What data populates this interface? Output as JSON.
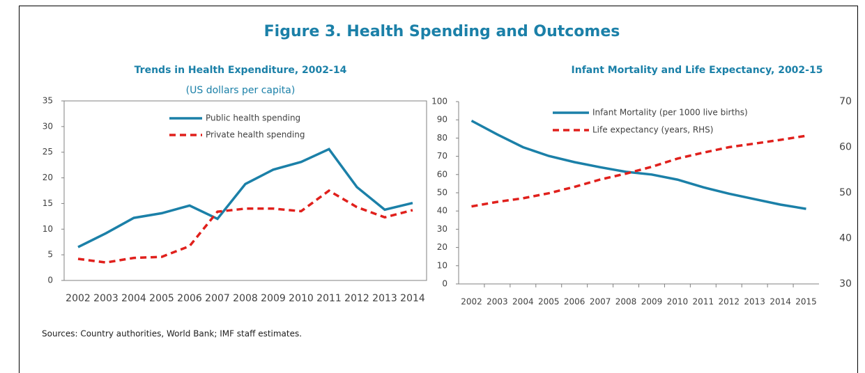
{
  "title": "Figure 3. Health Spending and Outcomes",
  "source": "Sources: Country authorities, World Bank; IMF staff estimates.",
  "chart_data": [
    {
      "type": "line",
      "title": "Trends in Health Expenditure, 2002-14",
      "subtitle": "(US dollars per capita)",
      "categories": [
        "2002",
        "2003",
        "2004",
        "2005",
        "2006",
        "2007",
        "2008",
        "2009",
        "2010",
        "2011",
        "2012",
        "2013",
        "2014"
      ],
      "series": [
        {
          "name": "Public health spending",
          "color": "#1b80a8",
          "dashed": false,
          "values": [
            6.5,
            9.2,
            12.2,
            13.1,
            14.6,
            12.0,
            18.8,
            21.6,
            23.1,
            25.6,
            18.2,
            13.8,
            15.1
          ]
        },
        {
          "name": "Private health spending",
          "color": "#e0201c",
          "dashed": true,
          "values": [
            4.2,
            3.5,
            4.4,
            4.6,
            6.7,
            13.4,
            14.0,
            14.0,
            13.5,
            17.5,
            14.3,
            12.3,
            13.7
          ]
        }
      ],
      "ylim": [
        0,
        35
      ],
      "yticks": [
        0,
        5,
        10,
        15,
        20,
        25,
        30,
        35
      ]
    },
    {
      "type": "line",
      "title": "Infant Mortality and Life Expectancy, 2002-15",
      "categories": [
        "2002",
        "2003",
        "2004",
        "2005",
        "2006",
        "2007",
        "2008",
        "2009",
        "2010",
        "2011",
        "2012",
        "2013",
        "2014",
        "2015"
      ],
      "series": [
        {
          "name": "Infant Mortality (per 1000 live births)",
          "color": "#1b80a8",
          "dashed": false,
          "values": [
            89.5,
            82,
            75,
            70.2,
            66.8,
            64,
            61.5,
            60,
            57.2,
            53,
            49.5,
            46.5,
            43.5,
            41.2
          ]
        },
        {
          "name": "Life expectancy (years, RHS)",
          "color": "#e0201c",
          "dashed": true,
          "axis": "y2",
          "values": [
            47,
            48,
            48.8,
            49.9,
            51.3,
            52.9,
            54.2,
            55.7,
            57.5,
            58.8,
            60,
            60.8,
            61.6,
            62.5
          ]
        }
      ],
      "ylim": [
        0,
        100
      ],
      "yticks": [
        0,
        10,
        20,
        30,
        40,
        50,
        60,
        70,
        80,
        90,
        100
      ],
      "y2lim": [
        30,
        70
      ],
      "y2ticks": [
        30,
        40,
        50,
        60,
        70
      ]
    }
  ]
}
